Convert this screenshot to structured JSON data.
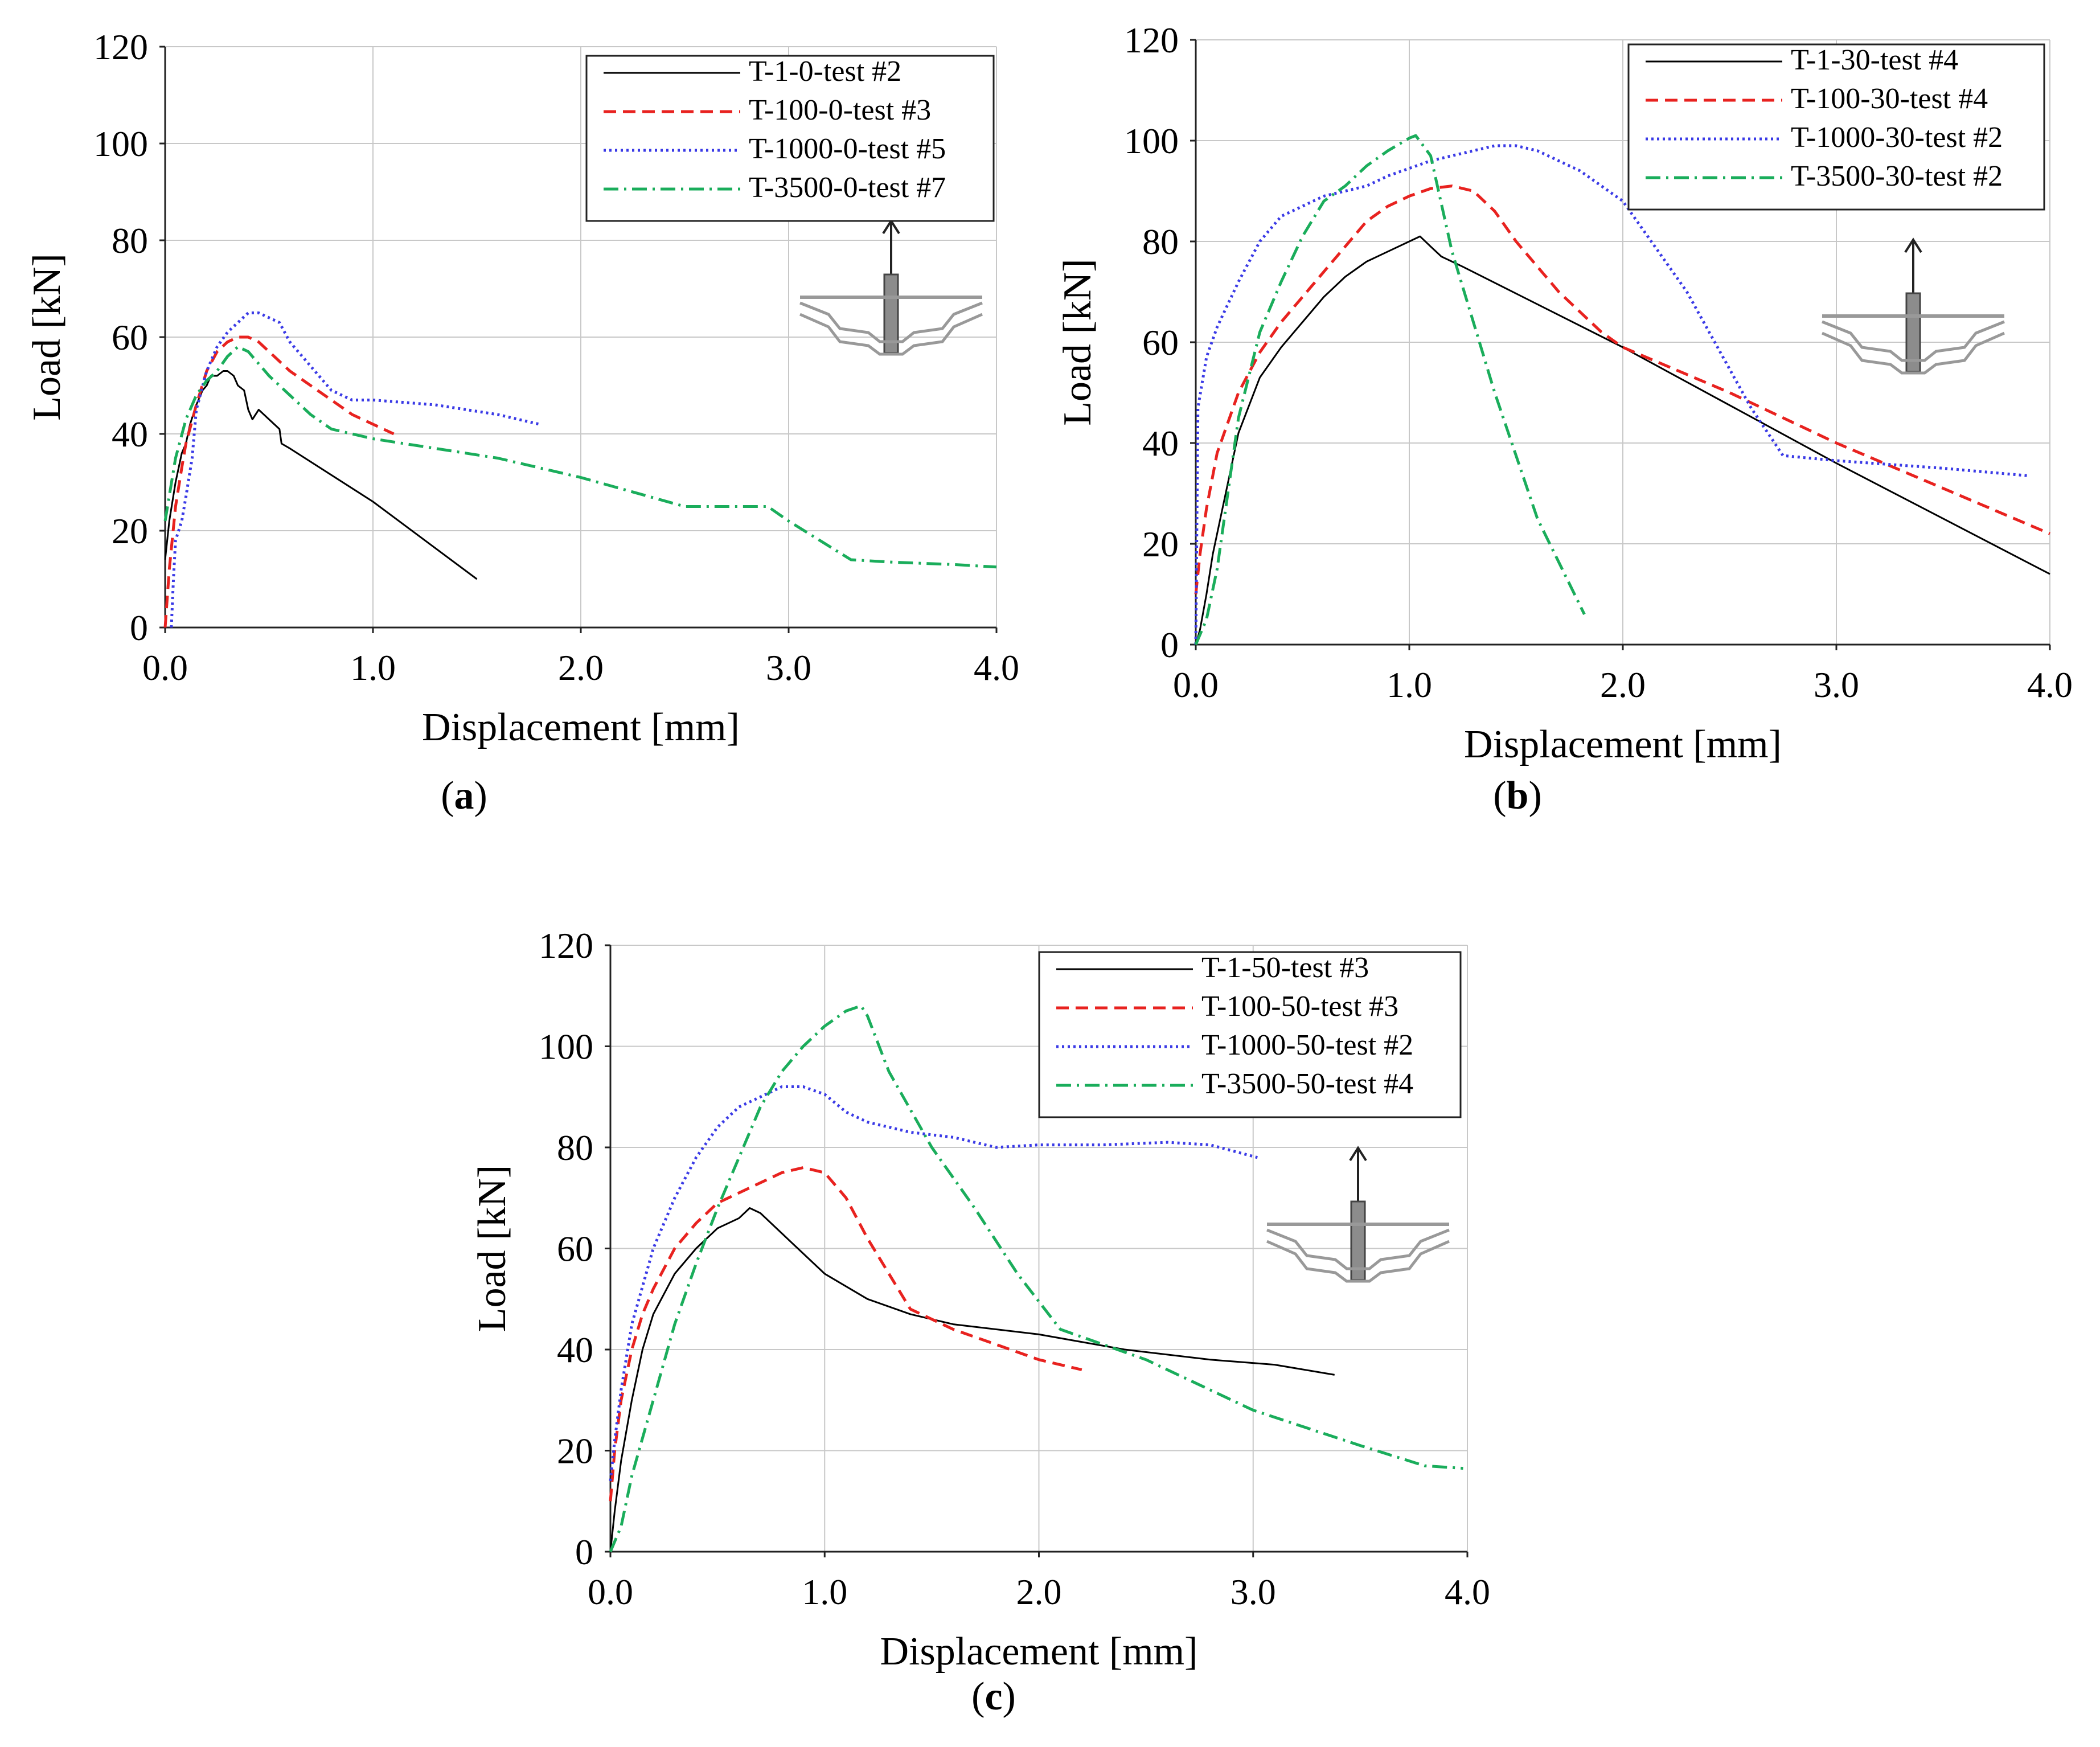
{
  "chart_data": [
    {
      "id": "a",
      "type": "line",
      "caption": "a",
      "xlabel": "Displacement [mm]",
      "ylabel": "Load [kN]",
      "xlim": [
        0,
        4
      ],
      "ylim": [
        0,
        120
      ],
      "xticks": [
        "0.0",
        "1.0",
        "2.0",
        "3.0",
        "4.0"
      ],
      "yticks": [
        "0",
        "20",
        "40",
        "60",
        "80",
        "100",
        "120"
      ],
      "grid": true,
      "legend_position": "top-right",
      "series": [
        {
          "name": "T-1-0-test #2",
          "color": "#000000",
          "style": "solid",
          "x": [
            0,
            0.02,
            0.05,
            0.08,
            0.1,
            0.12,
            0.15,
            0.18,
            0.2,
            0.22,
            0.25,
            0.28,
            0.3,
            0.33,
            0.35,
            0.38,
            0.4,
            0.42,
            0.45,
            0.5,
            0.55,
            0.56,
            0.6,
            1.0,
            1.5
          ],
          "y": [
            14,
            22,
            30,
            36,
            38,
            42,
            46,
            49,
            50,
            52,
            52,
            53,
            53,
            52,
            50,
            49,
            45,
            43,
            45,
            43,
            41,
            38,
            37,
            26,
            10
          ]
        },
        {
          "name": "T-100-0-test #3",
          "color": "#e8221f",
          "style": "dashed",
          "x": [
            0,
            0.02,
            0.05,
            0.08,
            0.1,
            0.15,
            0.2,
            0.25,
            0.3,
            0.35,
            0.4,
            0.45,
            0.5,
            0.6,
            0.7,
            0.8,
            0.9,
            1.0,
            1.1
          ],
          "y": [
            0,
            12,
            25,
            33,
            38,
            46,
            53,
            57,
            59,
            60,
            60,
            59,
            57,
            53,
            50,
            47,
            44,
            42,
            40
          ]
        },
        {
          "name": "T-1000-0-test #5",
          "color": "#3a3ae6",
          "style": "dotted",
          "x": [
            0.03,
            0.04,
            0.05,
            0.08,
            0.1,
            0.13,
            0.15,
            0.2,
            0.25,
            0.3,
            0.35,
            0.4,
            0.45,
            0.5,
            0.55,
            0.6,
            0.7,
            0.8,
            0.9,
            1.0,
            1.3,
            1.6,
            1.8
          ],
          "y": [
            0,
            10,
            18,
            22,
            27,
            35,
            45,
            53,
            58,
            61,
            63,
            65,
            65,
            64,
            63,
            59,
            54,
            49,
            47,
            47,
            46,
            44,
            42
          ]
        },
        {
          "name": "T-3500-0-test #7",
          "color": "#1aad5b",
          "style": "dashdot",
          "x": [
            0,
            0.05,
            0.1,
            0.15,
            0.2,
            0.25,
            0.3,
            0.35,
            0.4,
            0.5,
            0.6,
            0.7,
            0.8,
            1.0,
            1.3,
            1.6,
            1.8,
            2.0,
            2.5,
            2.9,
            3.0,
            3.3,
            3.5,
            3.8,
            4.0
          ],
          "y": [
            22,
            35,
            43,
            48,
            51,
            53,
            56,
            58,
            57,
            52,
            48,
            44,
            41,
            39,
            37,
            35,
            33,
            31,
            25,
            25,
            22,
            14,
            13.5,
            13,
            12.5
          ]
        }
      ]
    },
    {
      "id": "b",
      "type": "line",
      "caption": "b",
      "xlabel": "Displacement [mm]",
      "ylabel": "Load [kN]",
      "xlim": [
        0,
        4
      ],
      "ylim": [
        0,
        120
      ],
      "xticks": [
        "0.0",
        "1.0",
        "2.0",
        "3.0",
        "4.0"
      ],
      "yticks": [
        "0",
        "20",
        "40",
        "60",
        "80",
        "100",
        "120"
      ],
      "grid": true,
      "legend_position": "top-right",
      "series": [
        {
          "name": "T-1-30-test #4",
          "color": "#000000",
          "style": "solid",
          "x": [
            0,
            0.02,
            0.05,
            0.08,
            0.1,
            0.15,
            0.2,
            0.3,
            0.4,
            0.5,
            0.6,
            0.7,
            0.8,
            0.9,
            1.0,
            1.05,
            1.1,
            1.15,
            1.2,
            1.25,
            2.0,
            3.0,
            4.0
          ],
          "y": [
            0,
            3,
            10,
            18,
            22,
            32,
            42,
            53,
            59,
            64,
            69,
            73,
            76,
            78,
            80,
            81,
            79,
            77,
            76,
            75,
            59,
            36,
            14
          ]
        },
        {
          "name": "T-100-30-test #4",
          "color": "#e8221f",
          "style": "dashed",
          "x": [
            0,
            0.02,
            0.05,
            0.1,
            0.2,
            0.3,
            0.4,
            0.5,
            0.6,
            0.7,
            0.8,
            0.9,
            1.0,
            1.1,
            1.2,
            1.3,
            1.4,
            1.5,
            1.7,
            1.9,
            2.0,
            2.5,
            3.0,
            3.5,
            4.0
          ],
          "y": [
            10,
            18,
            27,
            38,
            50,
            58,
            64,
            69,
            74,
            79,
            84,
            87,
            89,
            90.5,
            91,
            90,
            86,
            80,
            70,
            62,
            59,
            50,
            40,
            31,
            22
          ]
        },
        {
          "name": "T-1000-30-test #2",
          "color": "#3a3ae6",
          "style": "dotted",
          "x": [
            0,
            0.01,
            0.05,
            0.1,
            0.2,
            0.3,
            0.4,
            0.5,
            0.6,
            0.7,
            0.8,
            0.9,
            1.0,
            1.1,
            1.2,
            1.3,
            1.4,
            1.5,
            1.6,
            1.8,
            2.0,
            2.3,
            2.6,
            2.75,
            3.0,
            3.5,
            3.9
          ],
          "y": [
            0,
            47,
            57,
            63,
            72,
            80,
            85,
            87,
            89,
            90,
            91,
            93,
            94.5,
            96,
            97,
            98,
            99,
            99,
            98,
            94,
            88,
            70,
            47,
            37.5,
            36.5,
            35,
            33.5
          ]
        },
        {
          "name": "T-3500-30-test #2",
          "color": "#1aad5b",
          "style": "dashdot",
          "x": [
            0,
            0.05,
            0.1,
            0.15,
            0.2,
            0.3,
            0.4,
            0.5,
            0.6,
            0.7,
            0.8,
            0.9,
            1.0,
            1.03,
            1.1,
            1.2,
            1.4,
            1.6,
            1.82
          ],
          "y": [
            0,
            5,
            15,
            30,
            45,
            62,
            72,
            81,
            88,
            91,
            95,
            98,
            100.5,
            101,
            97,
            78,
            50,
            25,
            6
          ]
        }
      ]
    },
    {
      "id": "c",
      "type": "line",
      "caption": "c",
      "xlabel": "Displacement [mm]",
      "ylabel": "Load [kN]",
      "xlim": [
        0,
        4
      ],
      "ylim": [
        0,
        120
      ],
      "xticks": [
        "0.0",
        "1.0",
        "2.0",
        "3.0",
        "4.0"
      ],
      "yticks": [
        "0",
        "20",
        "40",
        "60",
        "80",
        "100",
        "120"
      ],
      "grid": true,
      "legend_position": "top-right",
      "series": [
        {
          "name": "T-1-50-test #3",
          "color": "#000000",
          "style": "solid",
          "x": [
            0,
            0.02,
            0.05,
            0.1,
            0.15,
            0.2,
            0.3,
            0.4,
            0.5,
            0.6,
            0.65,
            0.7,
            0.8,
            0.9,
            1.0,
            1.2,
            1.4,
            1.6,
            2.0,
            2.4,
            2.8,
            3.1,
            3.38
          ],
          "y": [
            0,
            8,
            18,
            30,
            40,
            47,
            55,
            60,
            64,
            66,
            68,
            67,
            63,
            59,
            55,
            50,
            47,
            45,
            43,
            40,
            38,
            37,
            35
          ]
        },
        {
          "name": "T-100-50-test #3",
          "color": "#e8221f",
          "style": "dashed",
          "x": [
            0,
            0.02,
            0.05,
            0.1,
            0.15,
            0.2,
            0.3,
            0.4,
            0.5,
            0.6,
            0.7,
            0.8,
            0.9,
            1.0,
            1.1,
            1.2,
            1.4,
            1.6,
            1.8,
            2.0,
            2.2
          ],
          "y": [
            10,
            20,
            30,
            40,
            47,
            52,
            60,
            65,
            69,
            71,
            73,
            75,
            76,
            75,
            70,
            62,
            48,
            44,
            41,
            38,
            36
          ]
        },
        {
          "name": "T-1000-50-test #2",
          "color": "#3a3ae6",
          "style": "dotted",
          "x": [
            0,
            0.02,
            0.05,
            0.1,
            0.2,
            0.3,
            0.4,
            0.5,
            0.6,
            0.7,
            0.8,
            0.9,
            1.0,
            1.1,
            1.2,
            1.4,
            1.6,
            1.8,
            2.0,
            2.3,
            2.6,
            2.8,
            3.02
          ],
          "y": [
            14,
            22,
            32,
            45,
            60,
            70,
            78,
            84,
            88,
            90,
            92,
            92,
            90.5,
            87,
            85,
            83,
            82,
            80,
            80.5,
            80.5,
            81,
            80.5,
            78
          ]
        },
        {
          "name": "T-3500-50-test #4",
          "color": "#1aad5b",
          "style": "dashdot",
          "x": [
            0,
            0.05,
            0.1,
            0.2,
            0.3,
            0.4,
            0.5,
            0.6,
            0.7,
            0.8,
            0.9,
            1.0,
            1.1,
            1.17,
            1.2,
            1.3,
            1.5,
            1.7,
            1.9,
            2.1,
            2.5,
            3.0,
            3.5,
            3.8,
            3.98
          ],
          "y": [
            0,
            5,
            15,
            30,
            45,
            57,
            68,
            78,
            88,
            95,
            100,
            104,
            107,
            108,
            106,
            95,
            80,
            68,
            55,
            44,
            38,
            28,
            21,
            17,
            16.5
          ]
        }
      ]
    }
  ]
}
